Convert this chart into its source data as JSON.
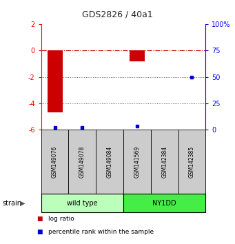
{
  "title": "GDS2826 / 40a1",
  "samples": [
    "GSM149076",
    "GSM149078",
    "GSM149084",
    "GSM141569",
    "GSM142384",
    "GSM142385"
  ],
  "log_ratios": [
    -4.7,
    null,
    null,
    -0.8,
    null,
    0.02
  ],
  "percentile_ranks": [
    1.5,
    1.5,
    null,
    3.0,
    null,
    50.0
  ],
  "ylim_left": [
    -6,
    2
  ],
  "ylim_right": [
    0,
    100
  ],
  "yticks_left": [
    -6,
    -4,
    -2,
    0,
    2
  ],
  "yticks_right": [
    0,
    25,
    50,
    75,
    100
  ],
  "groups": [
    {
      "label": "wild type",
      "start": 0,
      "end": 3,
      "color": "#bbffbb"
    },
    {
      "label": "NY1DD",
      "start": 3,
      "end": 6,
      "color": "#44ee44"
    }
  ],
  "bar_color": "#cc0000",
  "dot_color": "#0000cc",
  "dashed_line_color": "#cc0000",
  "dotted_line_color": "#555555",
  "bg_color": "#ffffff",
  "sample_box_color": "#cccccc",
  "legend_items": [
    {
      "label": "log ratio",
      "color": "#cc0000"
    },
    {
      "label": "percentile rank within the sample",
      "color": "#0000cc"
    }
  ],
  "strain_label": "strain"
}
